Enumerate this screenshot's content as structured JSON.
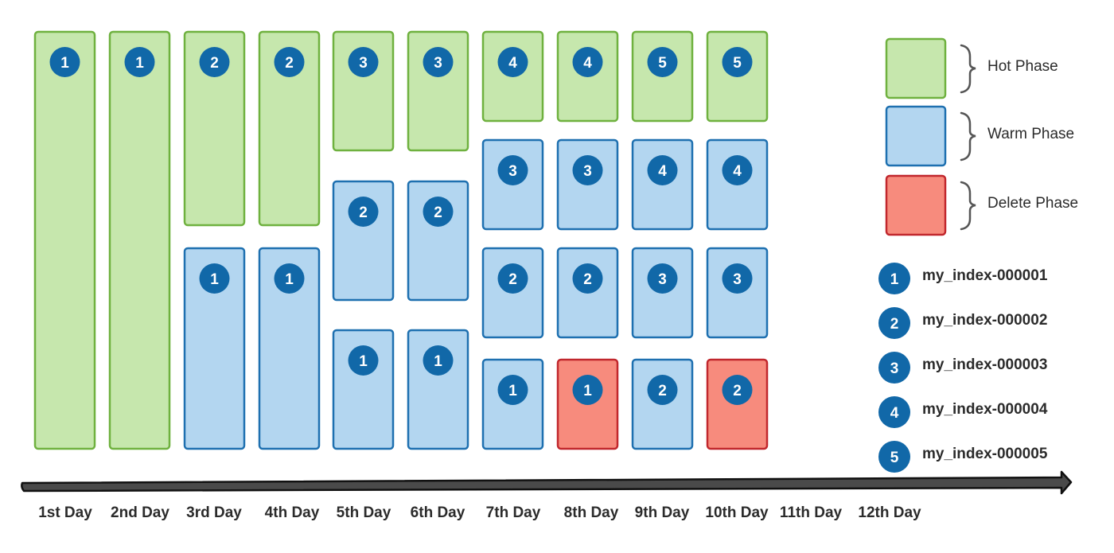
{
  "colors": {
    "hot_fill": "#c6e7ad",
    "hot_border": "#6fb13f",
    "warm_fill": "#b3d6f0",
    "warm_border": "#1e70b0",
    "delete_fill": "#f78b7d",
    "delete_border": "#c1272d",
    "badge": "#1168a8"
  },
  "legend": {
    "phases": [
      {
        "key": "hot",
        "label": "Hot Phase"
      },
      {
        "key": "warm",
        "label": "Warm Phase"
      },
      {
        "key": "delete",
        "label": "Delete Phase"
      }
    ],
    "indices": [
      {
        "num": "1",
        "label": "my_index-000001"
      },
      {
        "num": "2",
        "label": "my_index-000002"
      },
      {
        "num": "3",
        "label": "my_index-000003"
      },
      {
        "num": "4",
        "label": "my_index-000004"
      },
      {
        "num": "5",
        "label": "my_index-000005"
      }
    ]
  },
  "timeline": {
    "days": [
      "1st Day",
      "2nd Day",
      "3rd Day",
      "4th Day",
      "5th Day",
      "6th Day",
      "7th Day",
      "8th Day",
      "9th Day",
      "10th Day",
      "11th Day",
      "12th Day"
    ]
  },
  "columns": [
    {
      "day": "1st Day",
      "stack": [
        {
          "phase": "hot",
          "index": "1"
        }
      ]
    },
    {
      "day": "2nd Day",
      "stack": [
        {
          "phase": "hot",
          "index": "1"
        }
      ]
    },
    {
      "day": "3rd Day",
      "stack": [
        {
          "phase": "hot",
          "index": "2"
        },
        {
          "phase": "warm",
          "index": "1"
        }
      ]
    },
    {
      "day": "4th Day",
      "stack": [
        {
          "phase": "hot",
          "index": "2"
        },
        {
          "phase": "warm",
          "index": "1"
        }
      ]
    },
    {
      "day": "5th Day",
      "stack": [
        {
          "phase": "hot",
          "index": "3"
        },
        {
          "phase": "warm",
          "index": "2"
        },
        {
          "phase": "warm",
          "index": "1"
        }
      ]
    },
    {
      "day": "6th Day",
      "stack": [
        {
          "phase": "hot",
          "index": "3"
        },
        {
          "phase": "warm",
          "index": "2"
        },
        {
          "phase": "warm",
          "index": "1"
        }
      ]
    },
    {
      "day": "7th Day",
      "stack": [
        {
          "phase": "hot",
          "index": "4"
        },
        {
          "phase": "warm",
          "index": "3"
        },
        {
          "phase": "warm",
          "index": "2"
        },
        {
          "phase": "warm",
          "index": "1"
        }
      ]
    },
    {
      "day": "8th Day",
      "stack": [
        {
          "phase": "hot",
          "index": "4"
        },
        {
          "phase": "warm",
          "index": "3"
        },
        {
          "phase": "warm",
          "index": "2"
        },
        {
          "phase": "delete",
          "index": "1"
        }
      ]
    },
    {
      "day": "9th Day",
      "stack": [
        {
          "phase": "hot",
          "index": "5"
        },
        {
          "phase": "warm",
          "index": "4"
        },
        {
          "phase": "warm",
          "index": "3"
        },
        {
          "phase": "warm",
          "index": "2"
        }
      ]
    },
    {
      "day": "10th Day",
      "stack": [
        {
          "phase": "hot",
          "index": "5"
        },
        {
          "phase": "warm",
          "index": "4"
        },
        {
          "phase": "warm",
          "index": "3"
        },
        {
          "phase": "delete",
          "index": "2"
        }
      ]
    }
  ]
}
